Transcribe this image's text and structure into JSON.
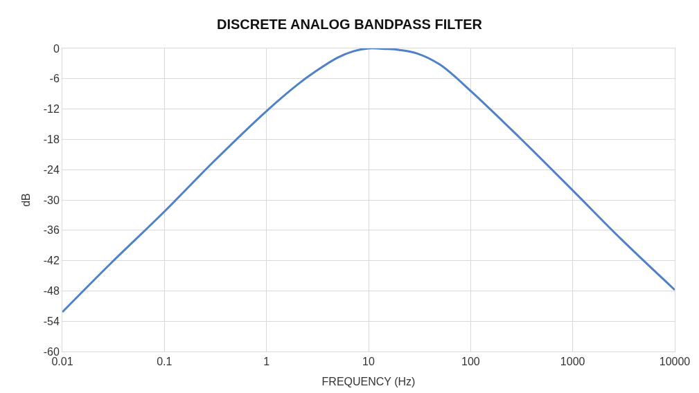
{
  "chart_data": {
    "type": "line",
    "title": "DISCRETE ANALOG BANDPASS FILTER",
    "xlabel": "FREQUENCY (Hz)",
    "ylabel": "dB",
    "log": "x",
    "grid": true,
    "marker": "none",
    "line_style": "solid",
    "xlim": [
      0.01,
      10000
    ],
    "xticks": [
      0.01,
      0.1,
      1,
      10,
      100,
      1000,
      10000
    ],
    "ylim": [
      -60,
      0
    ],
    "yticks": [
      -60,
      -54,
      -48,
      -42,
      -36,
      -30,
      -24,
      -18,
      -12,
      -6,
      0
    ],
    "series": [
      {
        "color": "#4f81c8",
        "x": [
          0.01,
          0.03,
          0.1,
          0.3,
          1,
          2,
          3,
          5,
          7,
          10,
          15,
          20,
          30,
          50,
          100,
          300,
          1000,
          3000,
          10000
        ],
        "values": [
          -52.2,
          -42.5,
          -32.3,
          -22.5,
          -12.4,
          -7.2,
          -4.6,
          -1.8,
          -0.6,
          0,
          -0.1,
          -0.3,
          -1.0,
          -3.2,
          -8.4,
          -17.6,
          -28.1,
          -37.8,
          -47.8
        ]
      }
    ]
  }
}
